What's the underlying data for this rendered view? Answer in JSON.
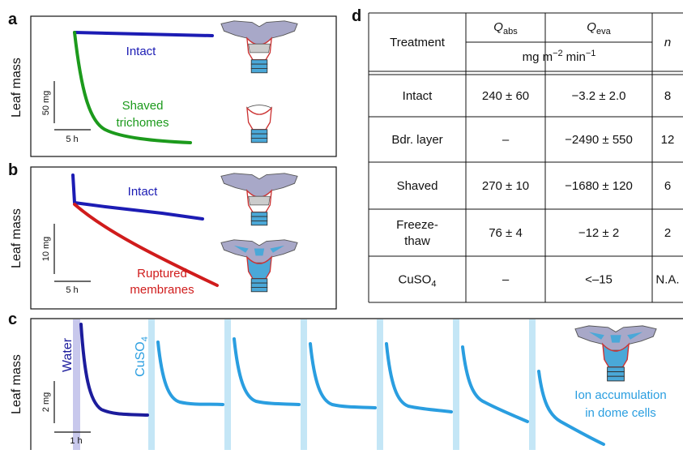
{
  "panels": {
    "a": {
      "label": "a",
      "y_label": "Leaf mass",
      "scale_y": "50 mg",
      "scale_x": "5 h",
      "intact": "Intact",
      "treated": [
        "Shaved",
        "trichomes"
      ]
    },
    "b": {
      "label": "b",
      "y_label": "Leaf mass",
      "scale_y": "10 mg",
      "scale_x": "5 h",
      "intact": "Intact",
      "treated": [
        "Ruptured",
        "membranes"
      ]
    },
    "c": {
      "label": "c",
      "y_label": "Leaf mass",
      "scale_y": "2 mg",
      "scale_x": "1 h",
      "water": "Water",
      "cuso4": [
        "CuSO",
        "4"
      ],
      "note": [
        "Ion accumulation",
        "in dome cells"
      ]
    }
  },
  "table": {
    "label": "d",
    "header": {
      "treatment": "Treatment",
      "q_abs": [
        "Q",
        "abs"
      ],
      "q_eva": [
        "Q",
        "eva"
      ],
      "units": [
        "mg m",
        "−2",
        "min",
        "−1"
      ],
      "n": "n"
    },
    "rows": [
      [
        [
          "Intact"
        ],
        "240 ± 60",
        "−3.2 ± 2.0",
        "8"
      ],
      [
        [
          "Bdr. layer"
        ],
        "–",
        "−2490 ± 550",
        "12"
      ],
      [
        [
          "Shaved"
        ],
        "270 ± 10",
        "−1680 ± 120",
        "6"
      ],
      [
        [
          "Freeze-",
          "thaw"
        ],
        "76 ± 4",
        "−12 ± 2",
        "2"
      ],
      [
        [
          "CuSO",
          "4"
        ],
        "–",
        "<–15",
        "N.A."
      ]
    ]
  }
}
